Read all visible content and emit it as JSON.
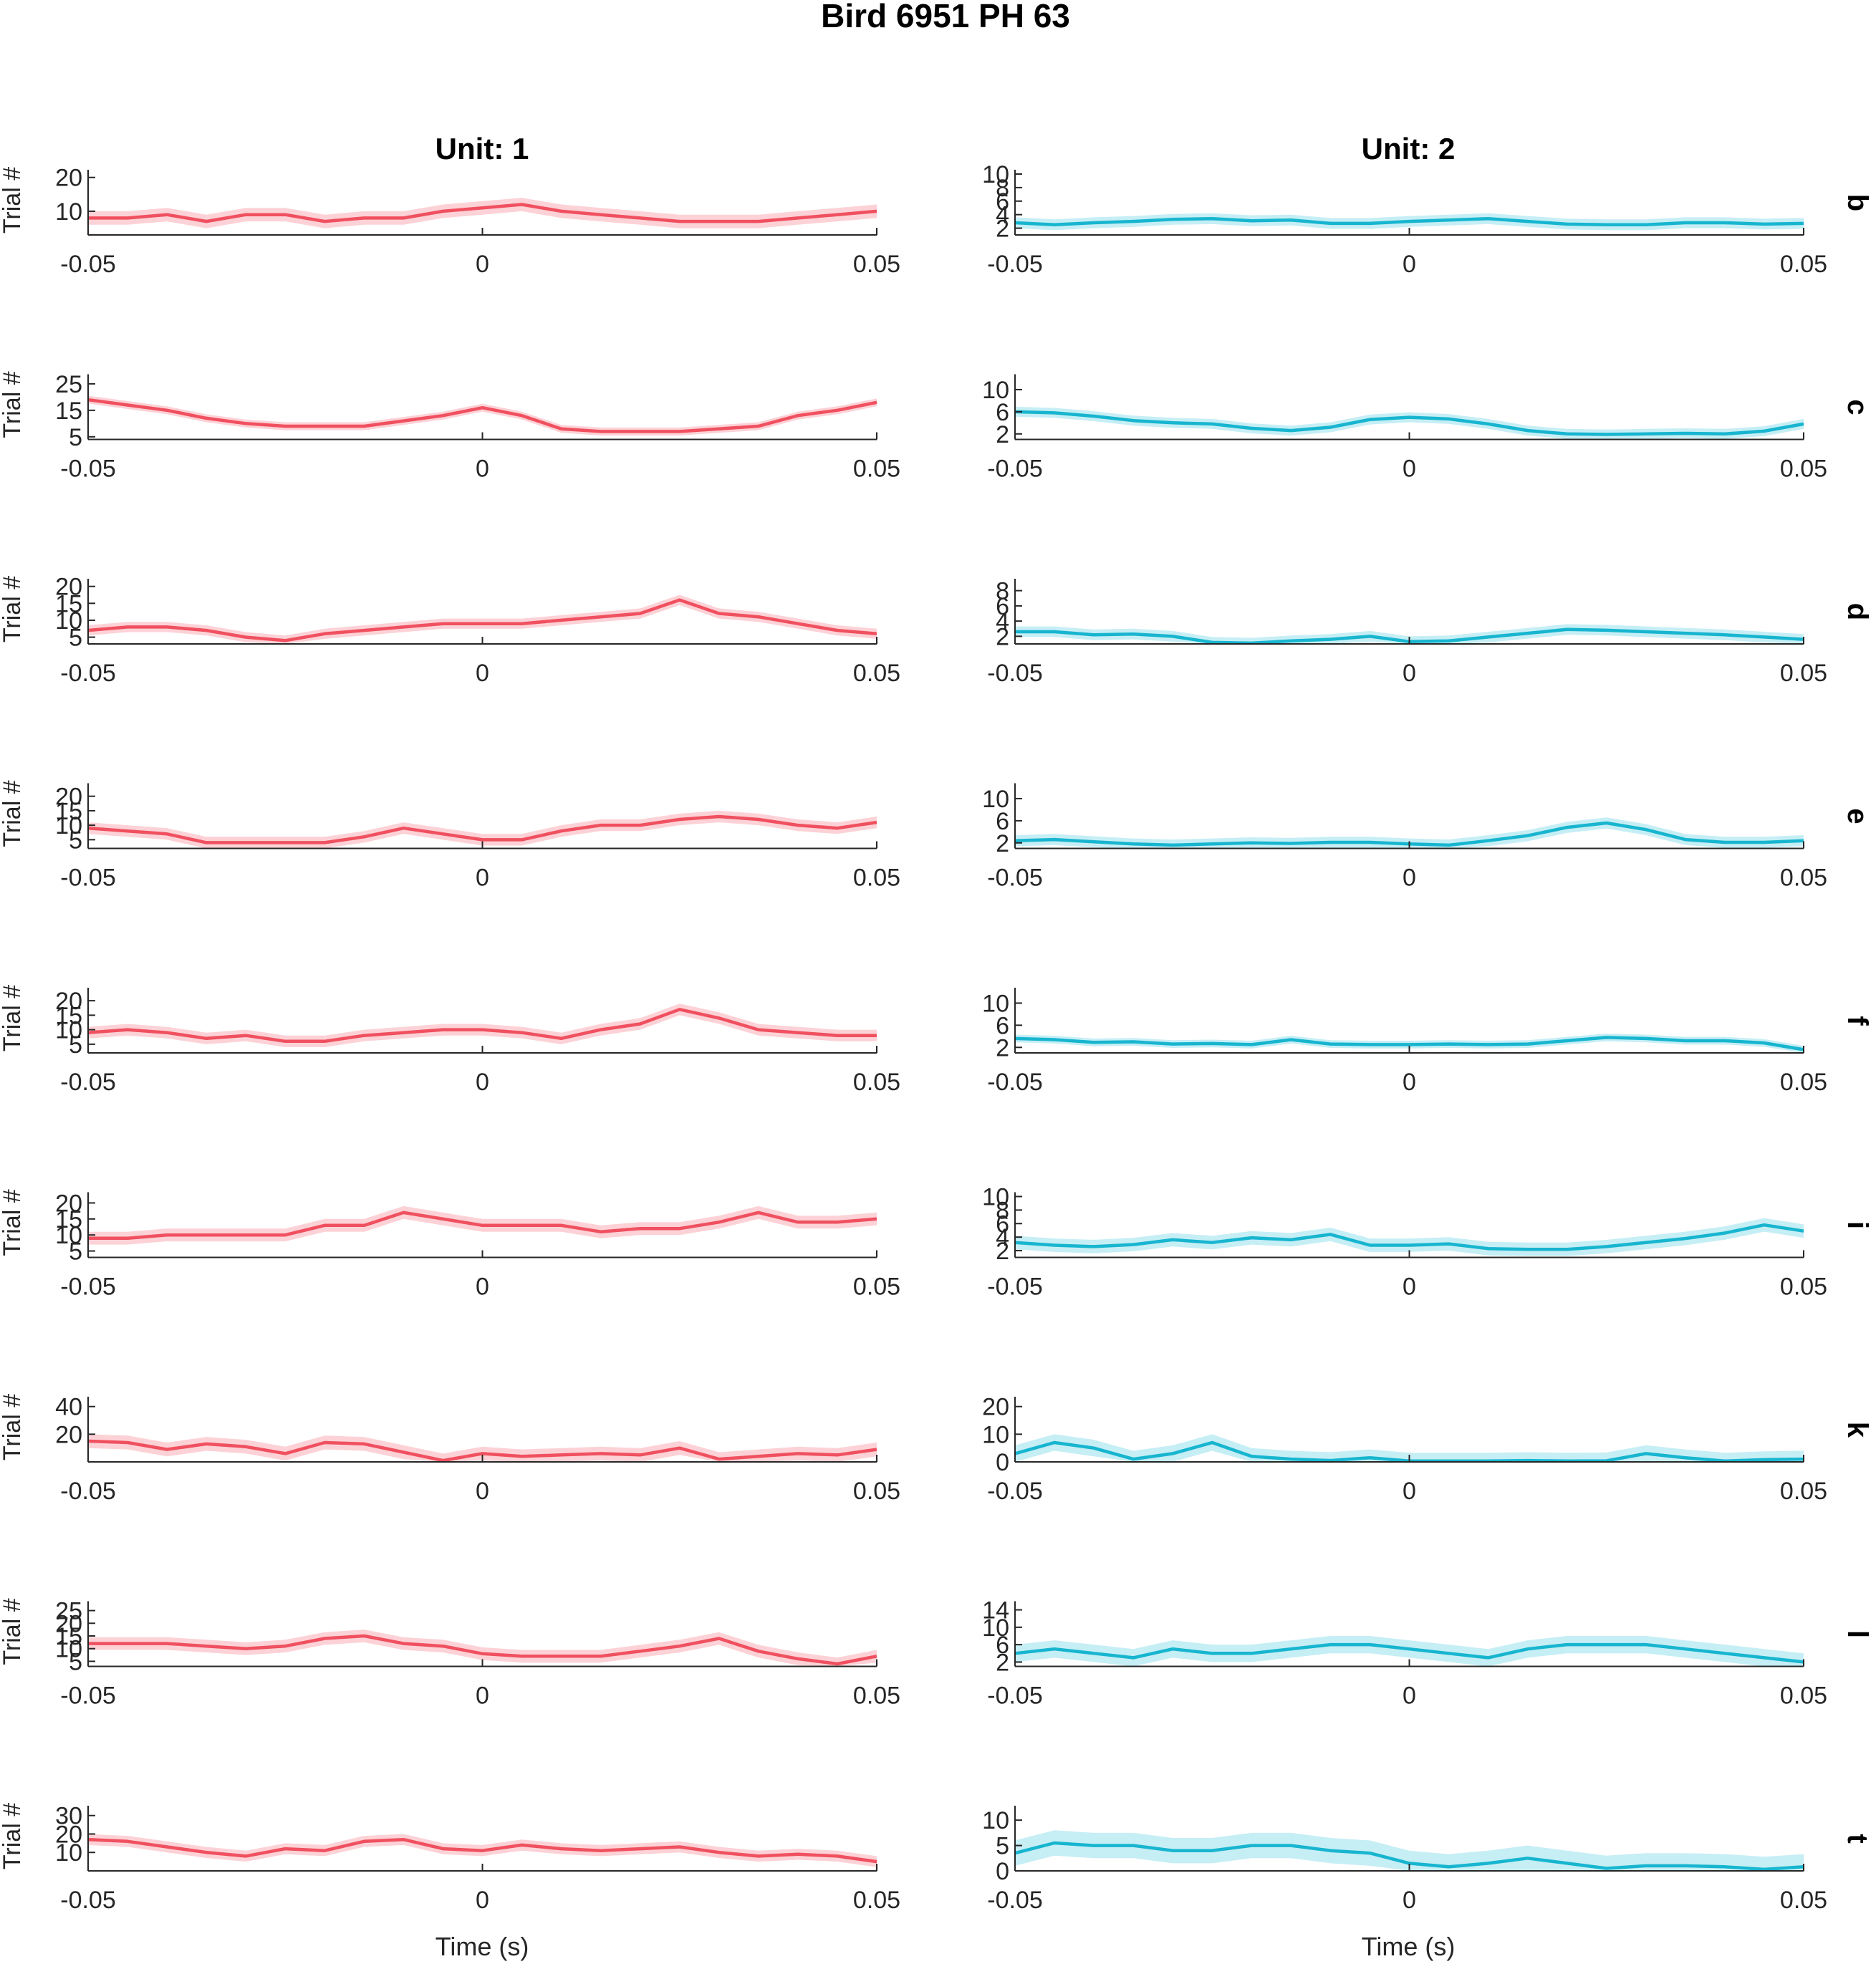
{
  "figure": {
    "title": "Bird 6951 PH 63",
    "columns": [
      "Unit: 1",
      "Unit: 2"
    ],
    "ylabel": "Trial #",
    "xlabel": "Time (s)"
  },
  "colors": {
    "unit1": "#f0505f",
    "unit1_band": "#fcd2d7",
    "unit2": "#17b5cf",
    "unit2_band": "#c6eef5"
  },
  "chart_data": [
    {
      "type": "line",
      "row": "b",
      "unit": "Unit: 1",
      "xlim": [
        -0.05,
        0.05
      ],
      "xticks": [
        "-0.05",
        "0",
        "0.05"
      ],
      "ylim": [
        3,
        21
      ],
      "yticks": [
        10,
        20
      ],
      "ylabel": "Trial #",
      "x": [
        -0.05,
        -0.045,
        -0.04,
        -0.035,
        -0.03,
        -0.025,
        -0.02,
        -0.015,
        -0.01,
        -0.005,
        0,
        0.005,
        0.01,
        0.015,
        0.02,
        0.025,
        0.03,
        0.035,
        0.04,
        0.045,
        0.05
      ],
      "y": [
        8,
        8,
        9,
        7,
        9,
        9,
        7,
        8,
        8,
        10,
        11,
        12,
        10,
        9,
        8,
        7,
        7,
        7,
        8,
        9,
        10
      ],
      "band": 2
    },
    {
      "type": "line",
      "row": "b",
      "unit": "Unit: 2",
      "xlim": [
        -0.05,
        0.05
      ],
      "xticks": [
        "-0.05",
        "0",
        "0.05"
      ],
      "ylim": [
        1,
        10
      ],
      "yticks": [
        2,
        4,
        6,
        8,
        10
      ],
      "ylabel": "",
      "x": [
        -0.05,
        -0.045,
        -0.04,
        -0.035,
        -0.03,
        -0.025,
        -0.02,
        -0.015,
        -0.01,
        -0.005,
        0,
        0.005,
        0.01,
        0.015,
        0.02,
        0.025,
        0.03,
        0.035,
        0.04,
        0.045,
        0.05
      ],
      "y": [
        2.8,
        2.5,
        2.8,
        3,
        3.3,
        3.4,
        3.1,
        3.2,
        2.7,
        2.7,
        3,
        3.2,
        3.4,
        3,
        2.6,
        2.5,
        2.5,
        2.8,
        2.8,
        2.6,
        2.7
      ],
      "band": 0.8
    },
    {
      "type": "line",
      "row": "c",
      "unit": "Unit: 1",
      "xlim": [
        -0.05,
        0.05
      ],
      "xticks": [
        "-0.05",
        "0",
        "0.05"
      ],
      "ylim": [
        4,
        27
      ],
      "yticks": [
        5,
        15,
        25
      ],
      "ylabel": "Trial #",
      "x": [
        -0.05,
        -0.045,
        -0.04,
        -0.035,
        -0.03,
        -0.025,
        -0.02,
        -0.015,
        -0.01,
        -0.005,
        0,
        0.005,
        0.01,
        0.015,
        0.02,
        0.025,
        0.03,
        0.035,
        0.04,
        0.045,
        0.05
      ],
      "y": [
        19,
        17,
        15,
        12,
        10,
        9,
        9,
        9,
        11,
        13,
        16,
        13,
        8,
        7,
        7,
        7,
        8,
        9,
        13,
        15,
        18
      ],
      "band": 1.5
    },
    {
      "type": "line",
      "row": "c",
      "unit": "Unit: 2",
      "xlim": [
        -0.05,
        0.05
      ],
      "xticks": [
        "-0.05",
        "0",
        "0.05"
      ],
      "ylim": [
        1,
        12
      ],
      "yticks": [
        2,
        6,
        10
      ],
      "ylabel": "",
      "x": [
        -0.05,
        -0.045,
        -0.04,
        -0.035,
        -0.03,
        -0.025,
        -0.02,
        -0.015,
        -0.01,
        -0.005,
        0,
        0.005,
        0.01,
        0.015,
        0.02,
        0.025,
        0.03,
        0.035,
        0.04,
        0.045,
        0.05
      ],
      "y": [
        6,
        5.8,
        5.2,
        4.4,
        4,
        3.8,
        3,
        2.6,
        3.2,
        4.6,
        5,
        4.7,
        3.8,
        2.6,
        2,
        1.9,
        2,
        2.1,
        2,
        2.5,
        3.8
      ],
      "band": 0.9
    },
    {
      "type": "line",
      "row": "d",
      "unit": "Unit: 1",
      "xlim": [
        -0.05,
        0.05
      ],
      "xticks": [
        "-0.05",
        "0",
        "0.05"
      ],
      "ylim": [
        3,
        21
      ],
      "yticks": [
        5,
        10,
        15,
        20
      ],
      "ylabel": "Trial #",
      "x": [
        -0.05,
        -0.045,
        -0.04,
        -0.035,
        -0.03,
        -0.025,
        -0.02,
        -0.015,
        -0.01,
        -0.005,
        0,
        0.005,
        0.01,
        0.015,
        0.02,
        0.025,
        0.03,
        0.035,
        0.04,
        0.045,
        0.05
      ],
      "y": [
        7,
        8,
        8,
        7,
        5,
        4,
        6,
        7,
        8,
        9,
        9,
        9,
        10,
        11,
        12,
        16,
        12,
        11,
        9,
        7,
        6
      ],
      "band": 1.5
    },
    {
      "type": "line",
      "row": "d",
      "unit": "Unit: 2",
      "xlim": [
        -0.05,
        0.05
      ],
      "xticks": [
        "-0.05",
        "0",
        "0.05"
      ],
      "ylim": [
        1,
        9
      ],
      "yticks": [
        2,
        4,
        6,
        8
      ],
      "ylabel": "",
      "x": [
        -0.05,
        -0.045,
        -0.04,
        -0.035,
        -0.03,
        -0.025,
        -0.02,
        -0.015,
        -0.01,
        -0.005,
        0,
        0.005,
        0.01,
        0.015,
        0.02,
        0.025,
        0.03,
        0.035,
        0.04,
        0.045,
        0.05
      ],
      "y": [
        2.6,
        2.6,
        2.2,
        2.3,
        2,
        1.2,
        1.1,
        1.4,
        1.6,
        2,
        1.3,
        1.4,
        1.9,
        2.4,
        2.9,
        2.8,
        2.6,
        2.4,
        2.2,
        1.9,
        1.6
      ],
      "band": 0.7
    },
    {
      "type": "line",
      "row": "e",
      "unit": "Unit: 1",
      "xlim": [
        -0.05,
        0.05
      ],
      "xticks": [
        "-0.05",
        "0",
        "0.05"
      ],
      "ylim": [
        2,
        23
      ],
      "yticks": [
        5,
        10,
        15,
        20
      ],
      "ylabel": "Trial #",
      "x": [
        -0.05,
        -0.045,
        -0.04,
        -0.035,
        -0.03,
        -0.025,
        -0.02,
        -0.015,
        -0.01,
        -0.005,
        0,
        0.005,
        0.01,
        0.015,
        0.02,
        0.025,
        0.03,
        0.035,
        0.04,
        0.045,
        0.05
      ],
      "y": [
        9,
        8,
        7,
        4,
        4,
        4,
        4,
        6,
        9,
        7,
        5,
        5,
        8,
        10,
        10,
        12,
        13,
        12,
        10,
        9,
        11
      ],
      "band": 2
    },
    {
      "type": "line",
      "row": "e",
      "unit": "Unit: 2",
      "xlim": [
        -0.05,
        0.05
      ],
      "xticks": [
        "-0.05",
        "0",
        "0.05"
      ],
      "ylim": [
        1,
        12
      ],
      "yticks": [
        2,
        6,
        10
      ],
      "ylabel": "",
      "x": [
        -0.05,
        -0.045,
        -0.04,
        -0.035,
        -0.03,
        -0.025,
        -0.02,
        -0.015,
        -0.01,
        -0.005,
        0,
        0.005,
        0.01,
        0.015,
        0.02,
        0.025,
        0.03,
        0.035,
        0.04,
        0.045,
        0.05
      ],
      "y": [
        2.4,
        2.6,
        2.2,
        1.8,
        1.6,
        1.8,
        2,
        1.9,
        2.1,
        2.1,
        1.8,
        1.6,
        2.4,
        3.3,
        4.8,
        5.6,
        4.4,
        2.6,
        2.1,
        2.1,
        2.4
      ],
      "band": 1
    },
    {
      "type": "line",
      "row": "f",
      "unit": "Unit: 1",
      "xlim": [
        -0.05,
        0.05
      ],
      "xticks": [
        "-0.05",
        "0",
        "0.05"
      ],
      "ylim": [
        2,
        23
      ],
      "yticks": [
        5,
        10,
        15,
        20
      ],
      "ylabel": "Trial #",
      "x": [
        -0.05,
        -0.045,
        -0.04,
        -0.035,
        -0.03,
        -0.025,
        -0.02,
        -0.015,
        -0.01,
        -0.005,
        0,
        0.005,
        0.01,
        0.015,
        0.02,
        0.025,
        0.03,
        0.035,
        0.04,
        0.045,
        0.05
      ],
      "y": [
        9,
        10,
        9,
        7,
        8,
        6,
        6,
        8,
        9,
        10,
        10,
        9,
        7,
        10,
        12,
        17,
        14,
        10,
        9,
        8,
        8
      ],
      "band": 2
    },
    {
      "type": "line",
      "row": "f",
      "unit": "Unit: 2",
      "xlim": [
        -0.05,
        0.05
      ],
      "xticks": [
        "-0.05",
        "0",
        "0.05"
      ],
      "ylim": [
        1,
        12
      ],
      "yticks": [
        2,
        6,
        10
      ],
      "ylabel": "",
      "x": [
        -0.05,
        -0.045,
        -0.04,
        -0.035,
        -0.03,
        -0.025,
        -0.02,
        -0.015,
        -0.01,
        -0.005,
        0,
        0.005,
        0.01,
        0.015,
        0.02,
        0.025,
        0.03,
        0.035,
        0.04,
        0.045,
        0.05
      ],
      "y": [
        3.6,
        3.4,
        2.9,
        3,
        2.6,
        2.7,
        2.5,
        3.4,
        2.6,
        2.5,
        2.5,
        2.6,
        2.5,
        2.6,
        3.2,
        3.8,
        3.6,
        3.2,
        3.2,
        2.8,
        1.6
      ],
      "band": 0.7
    },
    {
      "type": "line",
      "row": "i",
      "unit": "Unit: 1",
      "xlim": [
        -0.05,
        0.05
      ],
      "xticks": [
        "-0.05",
        "0",
        "0.05"
      ],
      "ylim": [
        3,
        22
      ],
      "yticks": [
        5,
        10,
        15,
        20
      ],
      "ylabel": "Trial #",
      "x": [
        -0.05,
        -0.045,
        -0.04,
        -0.035,
        -0.03,
        -0.025,
        -0.02,
        -0.015,
        -0.01,
        -0.005,
        0,
        0.005,
        0.01,
        0.015,
        0.02,
        0.025,
        0.03,
        0.035,
        0.04,
        0.045,
        0.05
      ],
      "y": [
        9,
        9,
        10,
        10,
        10,
        10,
        13,
        13,
        17,
        15,
        13,
        13,
        13,
        11,
        12,
        12,
        14,
        17,
        14,
        14,
        15
      ],
      "band": 2
    },
    {
      "type": "line",
      "row": "i",
      "unit": "Unit: 2",
      "xlim": [
        -0.05,
        0.05
      ],
      "xticks": [
        "-0.05",
        "0",
        "0.05"
      ],
      "ylim": [
        1,
        10
      ],
      "yticks": [
        2,
        4,
        6,
        8,
        10
      ],
      "ylabel": "",
      "x": [
        -0.05,
        -0.045,
        -0.04,
        -0.035,
        -0.03,
        -0.025,
        -0.02,
        -0.015,
        -0.01,
        -0.005,
        0,
        0.005,
        0.01,
        0.015,
        0.02,
        0.025,
        0.03,
        0.035,
        0.04,
        0.045,
        0.05
      ],
      "y": [
        3.2,
        2.8,
        2.6,
        2.9,
        3.6,
        3.2,
        3.9,
        3.6,
        4.4,
        2.8,
        2.8,
        3,
        2.3,
        2.2,
        2.2,
        2.6,
        3.2,
        3.8,
        4.6,
        5.8,
        4.9
      ],
      "band": 1
    },
    {
      "type": "line",
      "row": "k",
      "unit": "Unit: 1",
      "xlim": [
        -0.05,
        0.05
      ],
      "xticks": [
        "-0.05",
        "0",
        "0.05"
      ],
      "ylim": [
        0,
        44
      ],
      "yticks": [
        20,
        40
      ],
      "ylabel": "Trial #",
      "x": [
        -0.05,
        -0.045,
        -0.04,
        -0.035,
        -0.03,
        -0.025,
        -0.02,
        -0.015,
        -0.01,
        -0.005,
        0,
        0.005,
        0.01,
        0.015,
        0.02,
        0.025,
        0.03,
        0.035,
        0.04,
        0.045,
        0.05
      ],
      "y": [
        15,
        14,
        9,
        13,
        11,
        6,
        14,
        13,
        7,
        1,
        6,
        4,
        5,
        6,
        5,
        10,
        2,
        4,
        6,
        5,
        9
      ],
      "band": 5
    },
    {
      "type": "line",
      "row": "k",
      "unit": "Unit: 2",
      "xlim": [
        -0.05,
        0.05
      ],
      "xticks": [
        "-0.05",
        "0",
        "0.05"
      ],
      "ylim": [
        0,
        22
      ],
      "yticks": [
        0,
        10,
        20
      ],
      "ylabel": "",
      "x": [
        -0.05,
        -0.045,
        -0.04,
        -0.035,
        -0.03,
        -0.025,
        -0.02,
        -0.015,
        -0.01,
        -0.005,
        0,
        0.005,
        0.01,
        0.015,
        0.02,
        0.025,
        0.03,
        0.035,
        0.04,
        0.045,
        0.05
      ],
      "y": [
        3,
        7,
        5,
        1,
        3,
        7,
        2,
        1,
        0.5,
        1.5,
        0.3,
        0.3,
        0.3,
        0.5,
        0.3,
        0.4,
        3,
        1.5,
        0.3,
        0.8,
        1
      ],
      "band": 3
    },
    {
      "type": "line",
      "row": "l",
      "unit": "Unit: 1",
      "xlim": [
        -0.05,
        0.05
      ],
      "xticks": [
        "-0.05",
        "0",
        "0.05"
      ],
      "ylim": [
        3,
        27
      ],
      "yticks": [
        5,
        10,
        15,
        20,
        25
      ],
      "ylabel": "Trial #",
      "x": [
        -0.05,
        -0.045,
        -0.04,
        -0.035,
        -0.03,
        -0.025,
        -0.02,
        -0.015,
        -0.01,
        -0.005,
        0,
        0.005,
        0.01,
        0.015,
        0.02,
        0.025,
        0.03,
        0.035,
        0.04,
        0.045,
        0.05
      ],
      "y": [
        12,
        12,
        12,
        11,
        10,
        11,
        14,
        15,
        12,
        11,
        8,
        7,
        7,
        7,
        9,
        11,
        14,
        9,
        6,
        4,
        7
      ],
      "band": 2.5
    },
    {
      "type": "line",
      "row": "l",
      "unit": "Unit: 2",
      "xlim": [
        -0.05,
        0.05
      ],
      "xticks": [
        "-0.05",
        "0",
        "0.05"
      ],
      "ylim": [
        1,
        15
      ],
      "yticks": [
        2,
        6,
        10,
        14
      ],
      "ylabel": "",
      "x": [
        -0.05,
        -0.045,
        -0.04,
        -0.035,
        -0.03,
        -0.025,
        -0.02,
        -0.015,
        -0.01,
        -0.005,
        0,
        0.005,
        0.01,
        0.015,
        0.02,
        0.025,
        0.03,
        0.035,
        0.04,
        0.045,
        0.05
      ],
      "y": [
        4,
        5,
        4,
        3,
        5,
        4,
        4,
        5,
        6,
        6,
        5,
        4,
        3,
        5,
        6,
        6,
        6,
        5,
        4,
        3,
        2
      ],
      "band": 2
    },
    {
      "type": "line",
      "row": "t",
      "unit": "Unit: 1",
      "xlim": [
        -0.05,
        0.05
      ],
      "xticks": [
        "-0.05",
        "0",
        "0.05"
      ],
      "ylim": [
        0,
        33
      ],
      "yticks": [
        10,
        20,
        30
      ],
      "ylabel": "Trial #",
      "x": [
        -0.05,
        -0.045,
        -0.04,
        -0.035,
        -0.03,
        -0.025,
        -0.02,
        -0.015,
        -0.01,
        -0.005,
        0,
        0.005,
        0.01,
        0.015,
        0.02,
        0.025,
        0.03,
        0.035,
        0.04,
        0.045,
        0.05
      ],
      "y": [
        17,
        16,
        13,
        10,
        8,
        12,
        11,
        16,
        17,
        12,
        11,
        14,
        12,
        11,
        12,
        13,
        10,
        8,
        9,
        8,
        5
      ],
      "band": 3
    },
    {
      "type": "line",
      "row": "t",
      "unit": "Unit: 2",
      "xlim": [
        -0.05,
        0.05
      ],
      "xticks": [
        "-0.05",
        "0",
        "0.05"
      ],
      "ylim": [
        0,
        12
      ],
      "yticks": [
        0,
        5,
        10
      ],
      "ylabel": "",
      "x": [
        -0.05,
        -0.045,
        -0.04,
        -0.035,
        -0.03,
        -0.025,
        -0.02,
        -0.015,
        -0.01,
        -0.005,
        0,
        0.005,
        0.01,
        0.015,
        0.02,
        0.025,
        0.03,
        0.035,
        0.04,
        0.045,
        0.05
      ],
      "y": [
        3.5,
        5.5,
        5,
        5,
        4,
        4,
        5,
        5,
        4,
        3.5,
        1.5,
        0.8,
        1.5,
        2.5,
        1.5,
        0.5,
        1,
        1,
        0.8,
        0.3,
        0.8
      ],
      "band": 2.5
    }
  ]
}
